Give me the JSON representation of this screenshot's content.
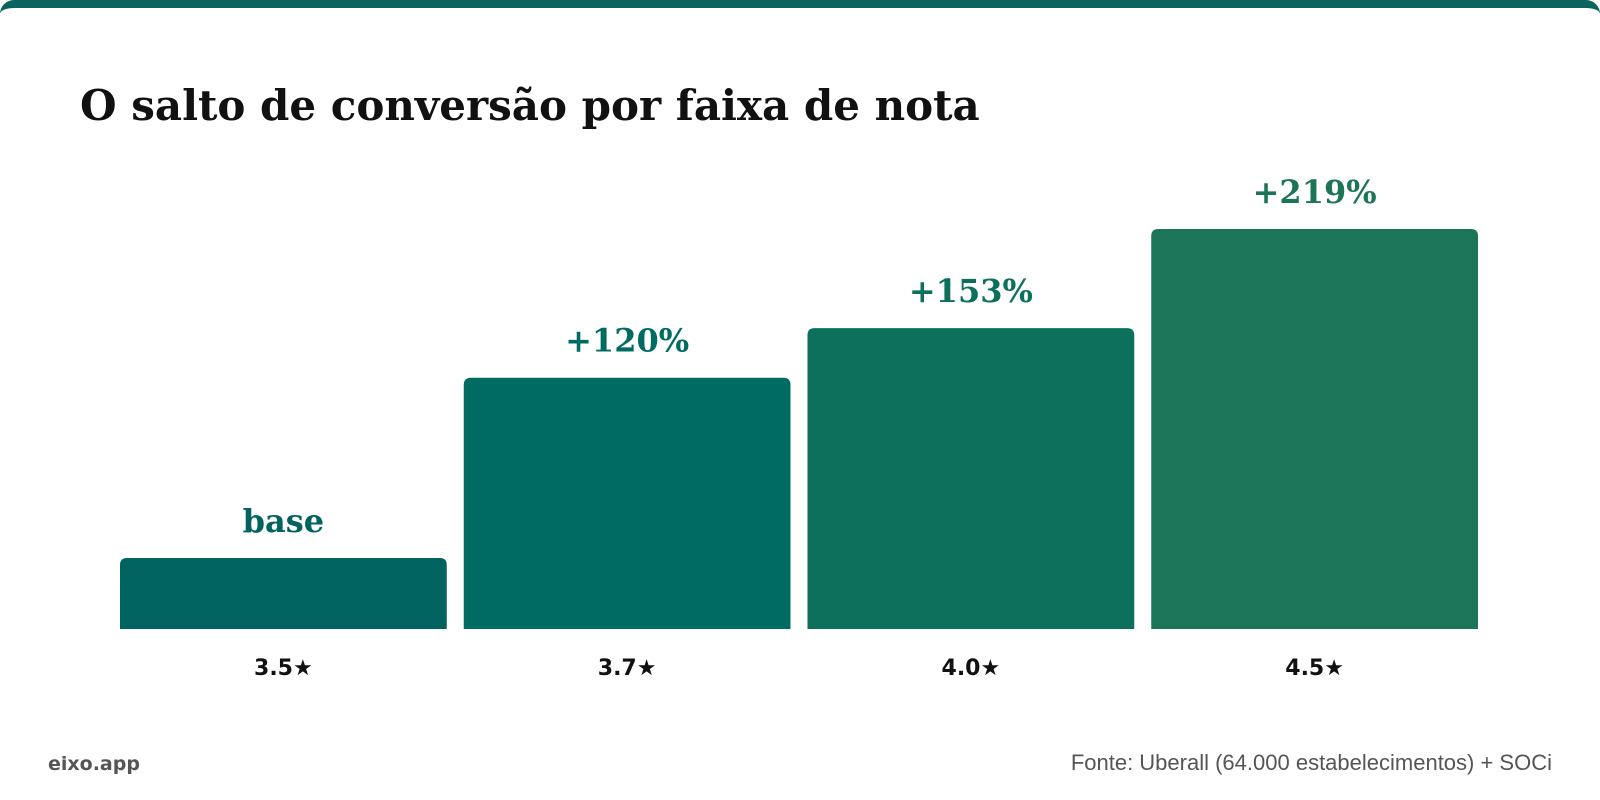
{
  "chart_data": {
    "type": "bar",
    "title": "O salto de conversão por faixa de nota",
    "categories": [
      "3.5★",
      "3.7★",
      "4.0★",
      "4.5★"
    ],
    "values": [
      0,
      120,
      153,
      219
    ],
    "value_labels": [
      "base",
      "+120%",
      "+153%",
      "+219%"
    ],
    "colors": [
      "#01635f",
      "#006b61",
      "#0c705d",
      "#1c7558"
    ]
  },
  "footer": {
    "brand": "eixo.app",
    "source": "Fonte: Uberall (64.000 estabelecimentos) + SOCi"
  }
}
